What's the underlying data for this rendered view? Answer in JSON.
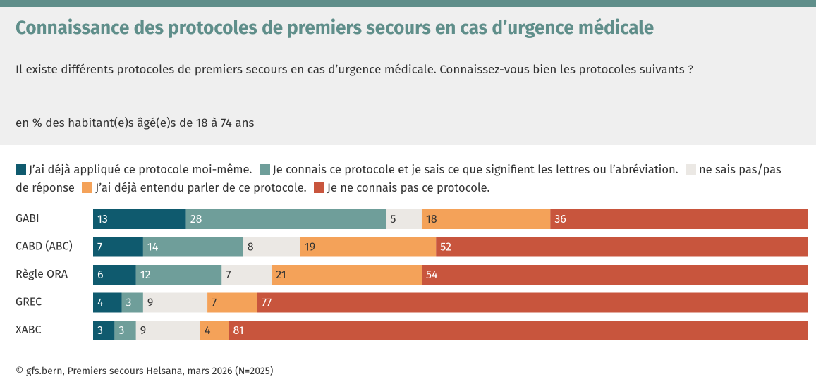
{
  "chart_data": {
    "type": "stacked-bar-horizontal",
    "title": "Connaissance des protocoles de premiers secours en cas d’urgence médicale",
    "subtitle": "Il existe différents protocoles de premiers secours en cas d’urgence médicale. Connaissez-vous bien les protocoles suivants ?",
    "note": "en % des habitant(e)s âgé(e)s de 18 à 74 ans",
    "source": "© gfs.bern, Premiers secours Helsana, mars 2026 (N=2025)",
    "categories": [
      "GABI",
      "CABD (ABC)",
      "Règle ORA",
      "GREC",
      "XABC"
    ],
    "xlim": [
      0,
      100
    ],
    "series": [
      {
        "name": "J’ai déjà appliqué ce protocole moi-même.",
        "color": "#0f5a6e",
        "values": [
          13,
          7,
          6,
          4,
          3
        ]
      },
      {
        "name": "Je connais ce protocole et je sais ce que signifient les lettres ou l’abréviation.",
        "color": "#6f9e9a",
        "values": [
          28,
          14,
          12,
          3,
          3
        ]
      },
      {
        "name": "ne sais pas/pas de réponse",
        "color": "#ebe8e4",
        "values": [
          5,
          8,
          7,
          9,
          9
        ]
      },
      {
        "name": "J’ai déjà entendu parler de ce protocole.",
        "color": "#f4a259",
        "values": [
          18,
          19,
          21,
          7,
          4
        ]
      },
      {
        "name": "Je ne connais pas ce protocole.",
        "color": "#c8553d",
        "values": [
          36,
          52,
          54,
          77,
          81
        ]
      }
    ]
  }
}
